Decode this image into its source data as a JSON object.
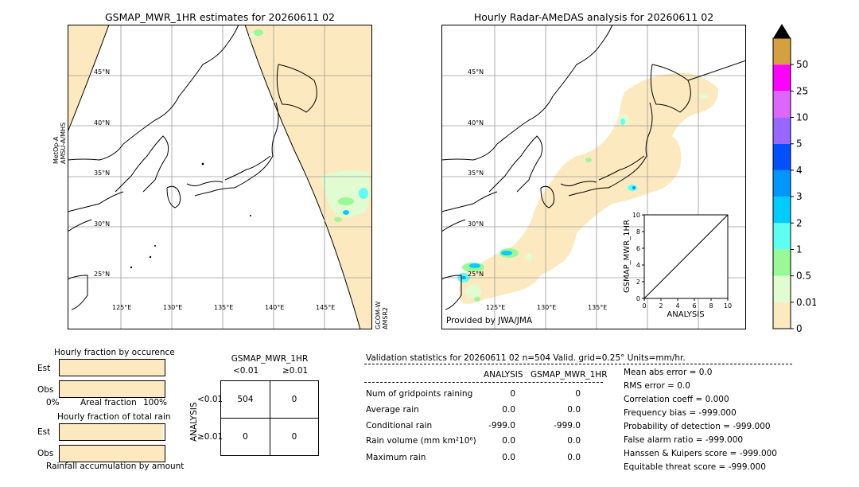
{
  "left_map": {
    "title": "GSMAP_MWR_1HR estimates for 20260611 02",
    "lat_labels": [
      "45°N",
      "40°N",
      "35°N",
      "30°N",
      "25°N"
    ],
    "lon_labels": [
      "125°E",
      "130°E",
      "135°E",
      "140°E",
      "145°E"
    ],
    "side_label_left": [
      "MetOp-A",
      "AMSU-A/MHS"
    ],
    "side_label_right": [
      "GCOM-W",
      "AMSR2"
    ]
  },
  "right_map": {
    "title": "Hourly Radar-AMeDAS analysis for 20260611 02",
    "lat_labels": [
      "45°N",
      "40°N",
      "35°N",
      "30°N",
      "25°N"
    ],
    "lon_labels": [
      "125°E",
      "130°E",
      "135°E"
    ],
    "credit": "Provided by JWA/JMA"
  },
  "colorbar": {
    "labels": [
      "0",
      "0.01",
      "0.5",
      "1",
      "2",
      "3",
      "4",
      "5",
      "10",
      "25",
      "50"
    ],
    "colors": [
      "#fde9bf",
      "#e0fcd0",
      "#98f995",
      "#5dfff3",
      "#00ccff",
      "#0096ff",
      "#0050ff",
      "#9966ff",
      "#dd66ff",
      "#ff00ff",
      "#d4a040"
    ],
    "extend_color": "#000000"
  },
  "chart_data": [
    {
      "type": "scatter",
      "title": "",
      "xlabel": "ANALYSIS",
      "ylabel": "GSMAP_MWR_1HR",
      "xlim": [
        0,
        10
      ],
      "ylim": [
        0,
        10
      ],
      "x_ticks": [
        "0",
        "2",
        "4",
        "6",
        "8",
        "10"
      ],
      "y_ticks": [
        "0",
        "2",
        "4",
        "6",
        "8",
        "10"
      ],
      "x": [],
      "y": [],
      "reference_line": "y = x"
    },
    {
      "type": "bar",
      "title": "Hourly fraction by occurence",
      "categories": [
        "Est",
        "Obs"
      ],
      "values": [
        0,
        0
      ],
      "xlabel": "Areal fraction",
      "x_tick_left": "0%",
      "x_tick_right": "100%"
    },
    {
      "type": "bar",
      "title": "Hourly fraction of total rain",
      "categories": [
        "Est",
        "Obs"
      ],
      "values": [
        0,
        0
      ],
      "xlabel": "Rainfall accumulation by amount"
    },
    {
      "type": "table",
      "title": "GSMAP_MWR_1HR",
      "col_headers": [
        "<0.01",
        "≥0.01"
      ],
      "row_axis_label": "ANALYSIS",
      "row_headers": [
        "<0.01",
        "≥0.01"
      ],
      "cells": [
        [
          "504",
          "0"
        ],
        [
          "0",
          "0"
        ]
      ]
    }
  ],
  "validation": {
    "header": "Validation statistics for 20260611 02  n=504 Valid. grid=0.25° Units=mm/hr.",
    "col_analysis": "ANALYSIS",
    "col_gsmap": "GSMAP_MWR_1HR",
    "rows": [
      {
        "label": "Num of gridpoints raining",
        "a": "0",
        "g": "0"
      },
      {
        "label": "Average rain",
        "a": "0.0",
        "g": "0.0"
      },
      {
        "label": "Conditional rain",
        "a": "-999.0",
        "g": "-999.0"
      },
      {
        "label": "Rain volume (mm km²10⁶)",
        "a": "0.0",
        "g": "0.0"
      },
      {
        "label": "Maximum rain",
        "a": "0.0",
        "g": "0.0"
      }
    ],
    "scores": [
      "Mean abs error =    0.0",
      "RMS error =    0.0",
      "Correlation coeff =  0.000",
      "Frequency bias = -999.000",
      "Probability of detection = -999.000",
      "False alarm ratio = -999.000",
      "Hanssen & Kuipers score = -999.000",
      "Equitable threat score = -999.000"
    ]
  }
}
